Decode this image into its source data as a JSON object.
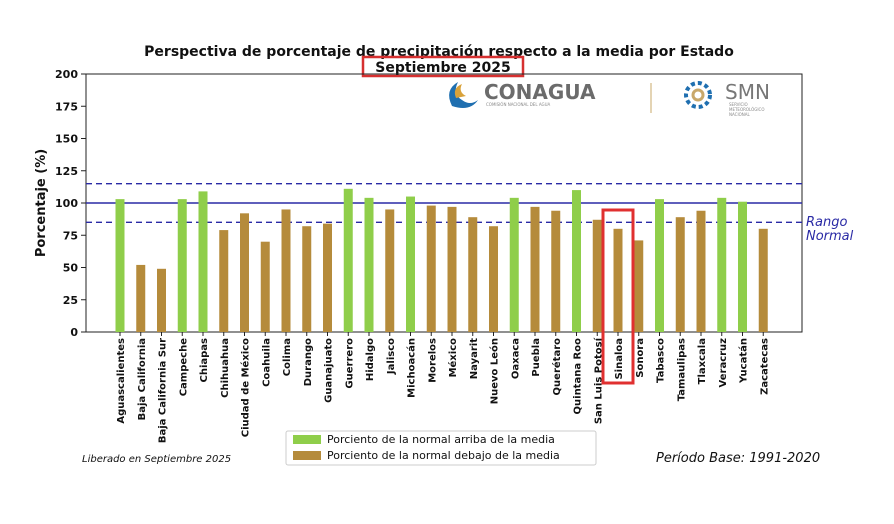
{
  "chart_data": {
    "type": "bar",
    "title": "Perspectiva de porcentaje de precipitación respecto a la media por Estado",
    "subtitle": "Septiembre 2025",
    "ylabel": "Porcentaje (%)",
    "ylim": [
      0,
      200
    ],
    "yticks": [
      "0",
      "25",
      "50",
      "75",
      "100",
      "125",
      "150",
      "175",
      "200"
    ],
    "categories": [
      "Aguascalientes",
      "Baja California",
      "Baja California Sur",
      "Campeche",
      "Chiapas",
      "Chihuahua",
      "Ciudad de México",
      "Coahuila",
      "Colima",
      "Durango",
      "Guanajuato",
      "Guerrero",
      "Hidalgo",
      "Jalisco",
      "Michoacán",
      "Morelos",
      "México",
      "Nayarit",
      "Nuevo León",
      "Oaxaca",
      "Puebla",
      "Querétaro",
      "Quintana Roo",
      "San Luis Potosí",
      "Sinaloa",
      "Sonora",
      "Tabasco",
      "Tamaulipas",
      "Tlaxcala",
      "Veracruz",
      "Yucatán",
      "Zacatecas"
    ],
    "values": [
      103,
      52,
      49,
      103,
      109,
      79,
      92,
      70,
      95,
      82,
      84,
      111,
      104,
      95,
      105,
      98,
      97,
      89,
      82,
      104,
      97,
      94,
      110,
      87,
      80,
      71,
      103,
      89,
      94,
      104,
      101,
      80
    ],
    "series": [
      {
        "name": "Porciento de la normal arriba de la media",
        "color": "#8fce4a"
      },
      {
        "name": "Porciento de la normal debajo de la media",
        "color": "#b58b3b"
      }
    ],
    "reference_lines": [
      {
        "value": 115,
        "style": "dashed"
      },
      {
        "value": 100,
        "style": "solid"
      },
      {
        "value": 85,
        "style": "dashed"
      }
    ],
    "range_label": [
      "Rango",
      "Normal"
    ],
    "highlighted_category": "Sinaloa",
    "legend_position": "bottom-center",
    "grid": false
  },
  "footer": {
    "released": "Liberado en Septiembre 2025",
    "base_period": "Período Base: 1991-2020"
  },
  "logos": {
    "conagua_name": "CONAGUA",
    "conagua_tagline": "COMISIÓN NACIONAL DEL AGUA",
    "smn_name": "SMN",
    "smn_tagline": [
      "SERVICIO",
      "METEOROLÓGICO",
      "NACIONAL"
    ]
  },
  "colors": {
    "above": "#8fce4a",
    "below": "#b58b3b",
    "reference": "#2a2aa5",
    "highlight": "#e03030"
  }
}
